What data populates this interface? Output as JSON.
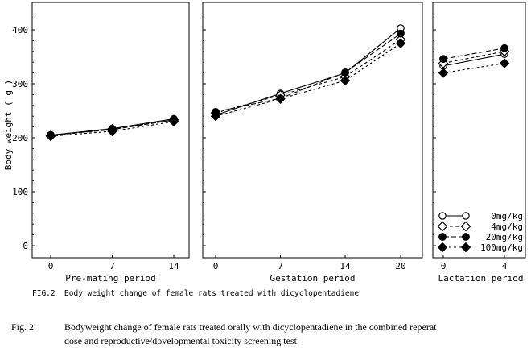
{
  "chart_data": {
    "type": "line",
    "ylabel": "Body weight ( g )",
    "ylim": [
      0,
      430
    ],
    "y_ticks": [
      0,
      100,
      200,
      300,
      400
    ],
    "y_tick_labels": [
      "0",
      "100",
      "200",
      "300",
      "400"
    ],
    "series_names": [
      "0mg/kg",
      "4mg/kg",
      "20mg/kg",
      "100mg/kg"
    ],
    "panels": [
      {
        "id": "premating",
        "xlabel": "Pre-mating period",
        "x": [
          0,
          7,
          14
        ],
        "x_tick_labels": [
          "0",
          "7",
          "14"
        ],
        "series": [
          {
            "name": "0mg/kg",
            "values": [
              205,
              217,
              235
            ]
          },
          {
            "name": "4mg/kg",
            "values": [
              204,
              216,
              233
            ]
          },
          {
            "name": "20mg/kg",
            "values": [
              205,
              215,
              233
            ]
          },
          {
            "name": "100mg/kg",
            "values": [
              203,
              212,
              230
            ]
          }
        ]
      },
      {
        "id": "gestation",
        "xlabel": "Gestation period",
        "x": [
          0,
          7,
          14,
          20
        ],
        "x_tick_labels": [
          "0",
          "7",
          "14",
          "20"
        ],
        "series": [
          {
            "name": "0mg/kg",
            "values": [
              242,
              282,
              320,
              403
            ]
          },
          {
            "name": "4mg/kg",
            "values": [
              246,
              279,
              313,
              382
            ]
          },
          {
            "name": "20mg/kg",
            "values": [
              248,
              273,
              321,
              393
            ]
          },
          {
            "name": "100mg/kg",
            "values": [
              240,
              272,
              306,
              375
            ]
          }
        ]
      },
      {
        "id": "lactation",
        "xlabel": "Lactation period",
        "x": [
          0,
          4
        ],
        "x_tick_labels": [
          "0",
          "4"
        ],
        "series": [
          {
            "name": "0mg/kg",
            "values": [
              333,
              355
            ]
          },
          {
            "name": "4mg/kg",
            "values": [
              338,
              360
            ]
          },
          {
            "name": "20mg/kg",
            "values": [
              346,
              366
            ]
          },
          {
            "name": "100mg/kg",
            "values": [
              320,
              338
            ]
          }
        ]
      }
    ]
  },
  "legend": {
    "labels": [
      "0mg/kg",
      "4mg/kg",
      "20mg/kg",
      "100mg/kg"
    ]
  },
  "caption_inner": "FIG.2  Body weight change of female rats treated with dicyclopentadiene",
  "caption_outer": {
    "number": "Fig. 2",
    "line1": "Bodyweight change of female rats treated orally with dicyclopentadiene in the combined reperat",
    "line2": "dose and reproductive/dovelopmental toxicity screening test"
  }
}
